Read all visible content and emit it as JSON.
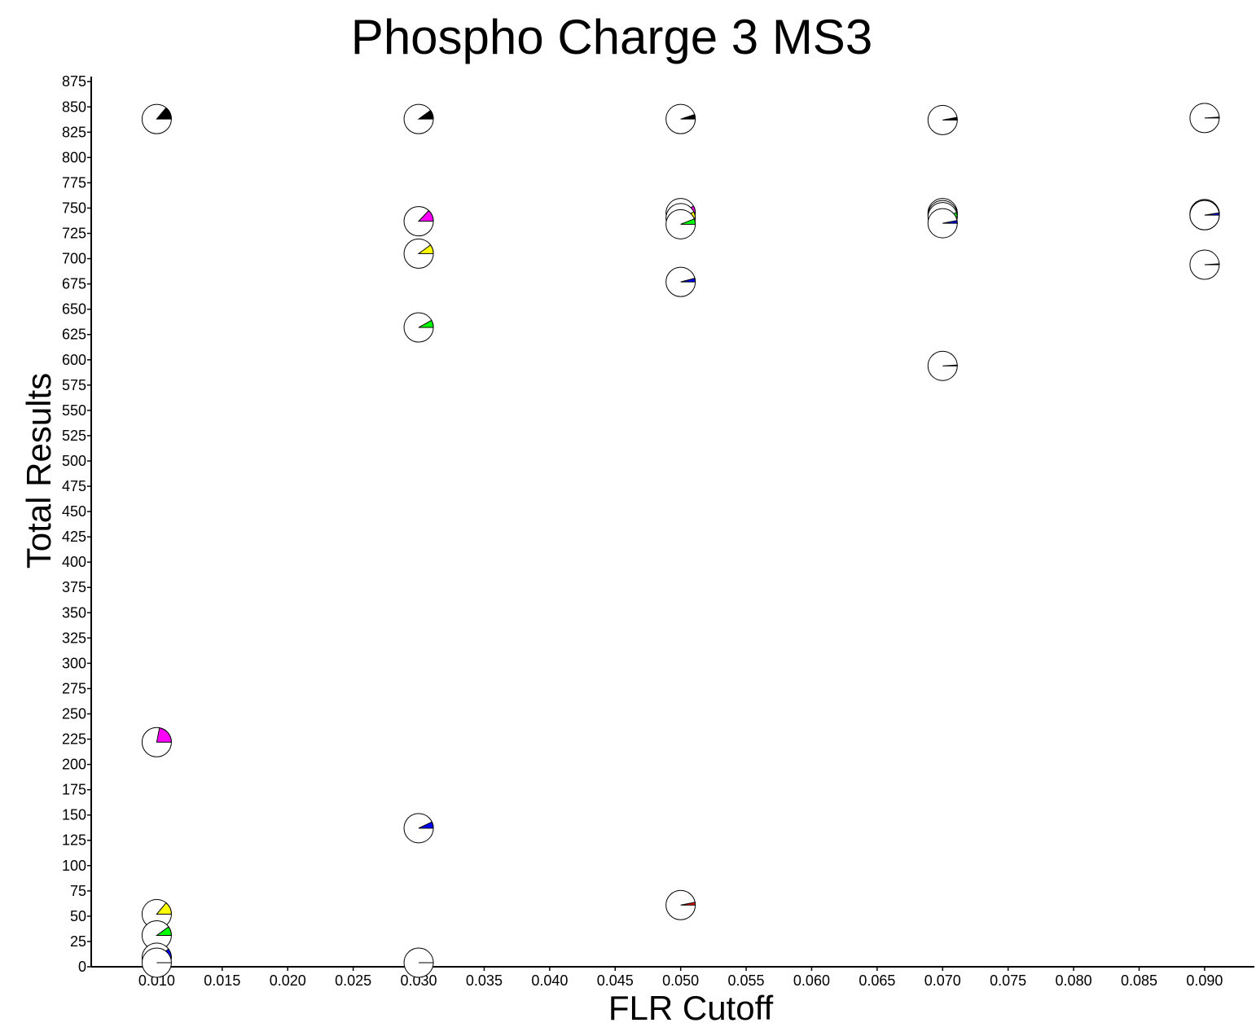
{
  "chart_data": {
    "type": "scatter",
    "subtype": "pie-glyph scatter",
    "title": "Phospho Charge 3 MS3",
    "xlabel": "FLR Cutoff",
    "ylabel": "Total Results",
    "xlim": [
      0.005,
      0.0938
    ],
    "ylim": [
      0,
      880
    ],
    "x_ticks": [
      "0.010",
      "0.015",
      "0.020",
      "0.025",
      "0.030",
      "0.035",
      "0.040",
      "0.045",
      "0.050",
      "0.055",
      "0.060",
      "0.065",
      "0.070",
      "0.075",
      "0.080",
      "0.085",
      "0.090"
    ],
    "y_ticks": [
      "0",
      "25",
      "50",
      "75",
      "100",
      "125",
      "150",
      "175",
      "200",
      "225",
      "250",
      "275",
      "300",
      "325",
      "350",
      "375",
      "400",
      "425",
      "450",
      "475",
      "500",
      "525",
      "550",
      "575",
      "600",
      "625",
      "650",
      "675",
      "700",
      "725",
      "750",
      "775",
      "800",
      "825",
      "850",
      "875"
    ],
    "grid": false,
    "legend": "none",
    "points": [
      {
        "x": 0.01,
        "y": 838,
        "color": "#000000",
        "fraction": 0.14
      },
      {
        "x": 0.01,
        "y": 222,
        "color": "#ff00ff",
        "fraction": 0.22
      },
      {
        "x": 0.01,
        "y": 52,
        "color": "#ffff00",
        "fraction": 0.14
      },
      {
        "x": 0.01,
        "y": 31,
        "color": "#00ff00",
        "fraction": 0.1
      },
      {
        "x": 0.01,
        "y": 9,
        "color": "#0000ff",
        "fraction": 0.1
      },
      {
        "x": 0.01,
        "y": 4,
        "color": "#ff0000",
        "fraction": 0.0
      },
      {
        "x": 0.03,
        "y": 838,
        "color": "#000000",
        "fraction": 0.1
      },
      {
        "x": 0.03,
        "y": 737,
        "color": "#ff00ff",
        "fraction": 0.13
      },
      {
        "x": 0.03,
        "y": 705,
        "color": "#ffff00",
        "fraction": 0.1
      },
      {
        "x": 0.03,
        "y": 632,
        "color": "#00ff00",
        "fraction": 0.08
      },
      {
        "x": 0.03,
        "y": 137,
        "color": "#0000ff",
        "fraction": 0.07
      },
      {
        "x": 0.03,
        "y": 4,
        "color": "#ff0000",
        "fraction": 0.0
      },
      {
        "x": 0.05,
        "y": 838,
        "color": "#000000",
        "fraction": 0.05
      },
      {
        "x": 0.05,
        "y": 745,
        "color": "#ff00ff",
        "fraction": 0.08
      },
      {
        "x": 0.05,
        "y": 740,
        "color": "#ffff00",
        "fraction": 0.07
      },
      {
        "x": 0.05,
        "y": 734,
        "color": "#00ff00",
        "fraction": 0.06
      },
      {
        "x": 0.05,
        "y": 677,
        "color": "#0000ff",
        "fraction": 0.04
      },
      {
        "x": 0.05,
        "y": 61,
        "color": "#ff0000",
        "fraction": 0.03
      },
      {
        "x": 0.07,
        "y": 837,
        "color": "#000000",
        "fraction": 0.03
      },
      {
        "x": 0.07,
        "y": 745,
        "color": "#ff00ff",
        "fraction": 0.06
      },
      {
        "x": 0.07,
        "y": 743,
        "color": "#ffff00",
        "fraction": 0.05
      },
      {
        "x": 0.07,
        "y": 741,
        "color": "#00ff00",
        "fraction": 0.05
      },
      {
        "x": 0.07,
        "y": 735,
        "color": "#0000ff",
        "fraction": 0.03
      },
      {
        "x": 0.07,
        "y": 594,
        "color": "#ff0000",
        "fraction": 0.01
      },
      {
        "x": 0.09,
        "y": 839,
        "color": "#000000",
        "fraction": 0.01
      },
      {
        "x": 0.09,
        "y": 744,
        "color": "#ff00ff",
        "fraction": 0.06
      },
      {
        "x": 0.09,
        "y": 744,
        "color": "#ffff00",
        "fraction": 0.05
      },
      {
        "x": 0.09,
        "y": 743,
        "color": "#00ff00",
        "fraction": 0.04
      },
      {
        "x": 0.09,
        "y": 743,
        "color": "#0000ff",
        "fraction": 0.025
      },
      {
        "x": 0.09,
        "y": 694,
        "color": "#ff0000",
        "fraction": 0.01
      }
    ]
  }
}
